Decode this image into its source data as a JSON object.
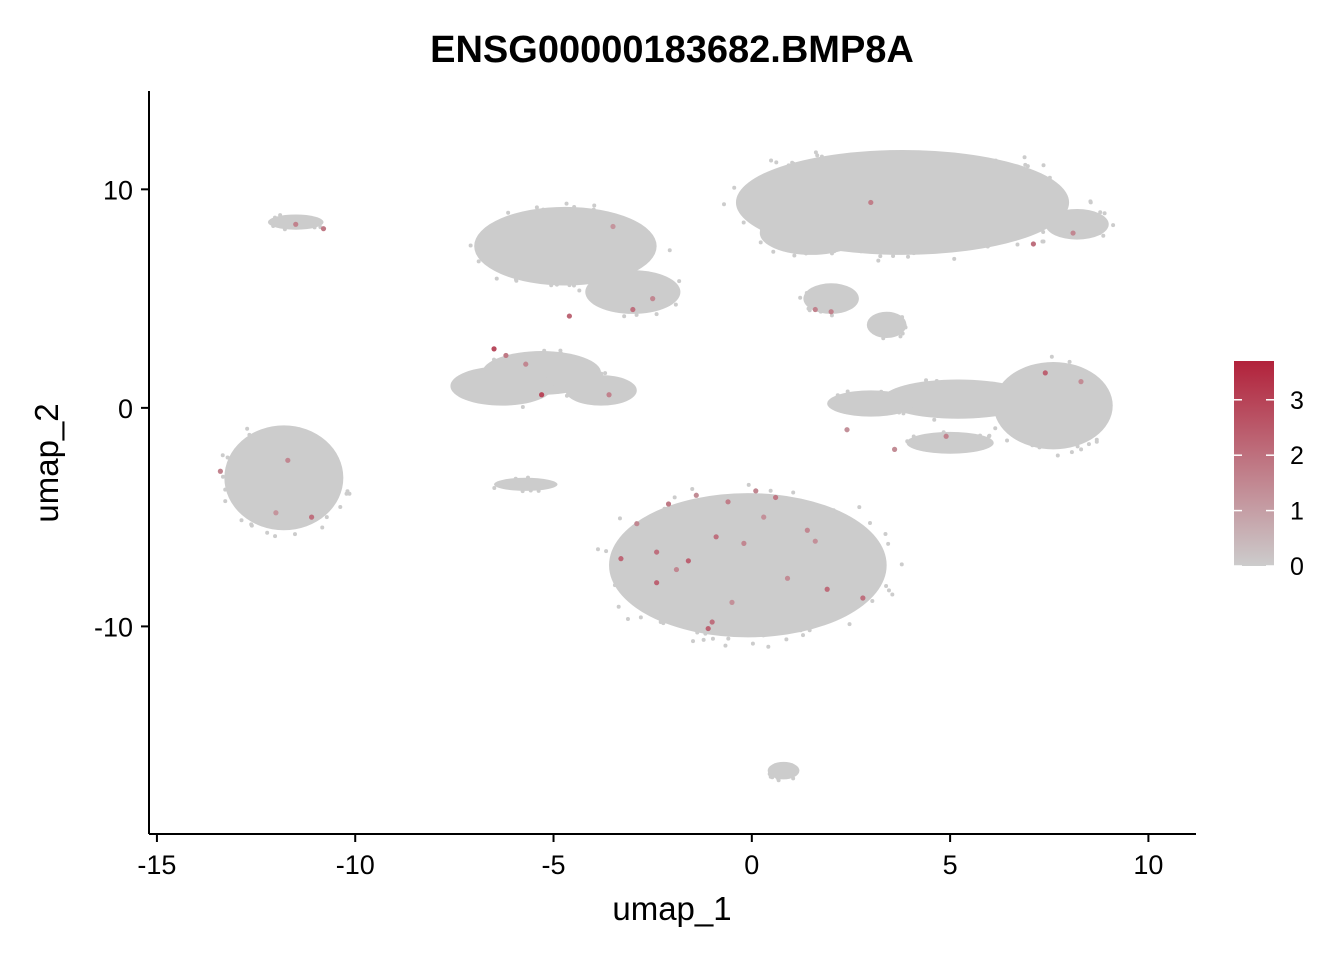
{
  "chart_data": {
    "type": "scatter",
    "title": "ENSG00000183682.BMP8A",
    "xlabel": "umap_1",
    "ylabel": "umap_2",
    "xlim": [
      -15.2,
      11.2
    ],
    "ylim": [
      -19.5,
      14.5
    ],
    "xticks": [
      -15,
      -10,
      -5,
      0,
      5,
      10
    ],
    "yticks": [
      -10,
      0,
      10
    ],
    "grid": false,
    "background_point_color": "#cccccc",
    "colorscale": {
      "low": "#cccccc",
      "high": "#b2223b",
      "min": 0,
      "max": 3.7
    },
    "legend": {
      "position": "right",
      "ticks": [
        0,
        1,
        2,
        3
      ]
    },
    "clusters": [
      {
        "cx": 3.8,
        "cy": 9.4,
        "rx": 4.2,
        "ry": 2.4
      },
      {
        "cx": 1.5,
        "cy": 8.0,
        "rx": 1.3,
        "ry": 1.0
      },
      {
        "cx": 8.2,
        "cy": 8.4,
        "rx": 0.8,
        "ry": 0.7
      },
      {
        "cx": -4.7,
        "cy": 7.4,
        "rx": 2.3,
        "ry": 1.8
      },
      {
        "cx": -3.0,
        "cy": 5.3,
        "rx": 1.2,
        "ry": 1.0
      },
      {
        "cx": -5.3,
        "cy": 1.6,
        "rx": 1.5,
        "ry": 1.0
      },
      {
        "cx": -6.3,
        "cy": 1.0,
        "rx": 1.3,
        "ry": 0.9
      },
      {
        "cx": -3.8,
        "cy": 0.8,
        "rx": 0.9,
        "ry": 0.7
      },
      {
        "cx": -11.8,
        "cy": -3.2,
        "rx": 1.5,
        "ry": 2.4
      },
      {
        "cx": -11.5,
        "cy": 8.5,
        "rx": 0.7,
        "ry": 0.35
      },
      {
        "cx": -0.1,
        "cy": -7.2,
        "rx": 3.5,
        "ry": 3.3
      },
      {
        "cx": 7.6,
        "cy": 0.1,
        "rx": 1.5,
        "ry": 2.0
      },
      {
        "cx": 5.2,
        "cy": 0.4,
        "rx": 1.9,
        "ry": 0.9
      },
      {
        "cx": 3.0,
        "cy": 0.2,
        "rx": 1.1,
        "ry": 0.6
      },
      {
        "cx": 5.0,
        "cy": -1.6,
        "rx": 1.1,
        "ry": 0.5
      },
      {
        "cx": 2.0,
        "cy": 5.0,
        "rx": 0.7,
        "ry": 0.7
      },
      {
        "cx": 3.4,
        "cy": 3.8,
        "rx": 0.5,
        "ry": 0.6
      },
      {
        "cx": -5.7,
        "cy": -3.5,
        "rx": 0.8,
        "ry": 0.3
      },
      {
        "cx": 0.8,
        "cy": -16.6,
        "rx": 0.4,
        "ry": 0.4
      }
    ],
    "expressing_points": [
      {
        "x": -11.5,
        "y": 8.4,
        "v": 1.6
      },
      {
        "x": -10.8,
        "y": 8.2,
        "v": 1.8
      },
      {
        "x": -6.5,
        "y": 2.7,
        "v": 2.8
      },
      {
        "x": -6.2,
        "y": 2.4,
        "v": 1.8
      },
      {
        "x": -5.7,
        "y": 2.0,
        "v": 1.5
      },
      {
        "x": -5.3,
        "y": 0.6,
        "v": 2.9
      },
      {
        "x": -4.6,
        "y": 4.2,
        "v": 2.2
      },
      {
        "x": -3.6,
        "y": 0.6,
        "v": 1.6
      },
      {
        "x": -3.0,
        "y": 4.5,
        "v": 2.0
      },
      {
        "x": -2.5,
        "y": 5.0,
        "v": 1.5
      },
      {
        "x": -3.5,
        "y": 8.3,
        "v": 1.2
      },
      {
        "x": 3.0,
        "y": 9.4,
        "v": 1.7
      },
      {
        "x": 7.4,
        "y": 1.6,
        "v": 2.3
      },
      {
        "x": 8.3,
        "y": 1.2,
        "v": 1.4
      },
      {
        "x": 7.1,
        "y": 7.5,
        "v": 2.0
      },
      {
        "x": 8.1,
        "y": 8.0,
        "v": 1.5
      },
      {
        "x": 2.0,
        "y": 4.4,
        "v": 1.6
      },
      {
        "x": 1.6,
        "y": 4.5,
        "v": 1.6
      },
      {
        "x": 4.9,
        "y": -1.3,
        "v": 1.6
      },
      {
        "x": 3.6,
        "y": -1.9,
        "v": 1.4
      },
      {
        "x": 2.4,
        "y": -1.0,
        "v": 1.3
      },
      {
        "x": -13.4,
        "y": -2.9,
        "v": 1.6
      },
      {
        "x": -11.7,
        "y": -2.4,
        "v": 1.5
      },
      {
        "x": -11.1,
        "y": -5.0,
        "v": 2.0
      },
      {
        "x": -12.0,
        "y": -4.8,
        "v": 1.2
      },
      {
        "x": -3.3,
        "y": -6.9,
        "v": 2.2
      },
      {
        "x": -2.4,
        "y": -6.6,
        "v": 2.0
      },
      {
        "x": -1.6,
        "y": -7.0,
        "v": 2.3
      },
      {
        "x": -0.9,
        "y": -5.9,
        "v": 2.0
      },
      {
        "x": -0.6,
        "y": -4.3,
        "v": 1.7
      },
      {
        "x": 0.1,
        "y": -3.8,
        "v": 1.5
      },
      {
        "x": 0.6,
        "y": -4.1,
        "v": 1.8
      },
      {
        "x": -1.1,
        "y": -10.1,
        "v": 2.3
      },
      {
        "x": -1.0,
        "y": -9.8,
        "v": 2.0
      },
      {
        "x": 1.9,
        "y": -8.3,
        "v": 2.1
      },
      {
        "x": 2.8,
        "y": -8.7,
        "v": 2.0
      },
      {
        "x": -2.4,
        "y": -8.0,
        "v": 2.3
      },
      {
        "x": -2.1,
        "y": -4.4,
        "v": 1.8
      },
      {
        "x": -0.2,
        "y": -6.2,
        "v": 1.5
      },
      {
        "x": 1.4,
        "y": -5.6,
        "v": 1.5
      },
      {
        "x": -1.9,
        "y": -7.4,
        "v": 1.5
      },
      {
        "x": 0.9,
        "y": -7.8,
        "v": 1.4
      },
      {
        "x": -1.4,
        "y": -4.0,
        "v": 1.4
      },
      {
        "x": -2.9,
        "y": -5.3,
        "v": 1.5
      },
      {
        "x": 0.3,
        "y": -5.0,
        "v": 1.3
      },
      {
        "x": -0.5,
        "y": -8.9,
        "v": 1.3
      },
      {
        "x": 1.6,
        "y": -6.1,
        "v": 1.3
      }
    ]
  }
}
